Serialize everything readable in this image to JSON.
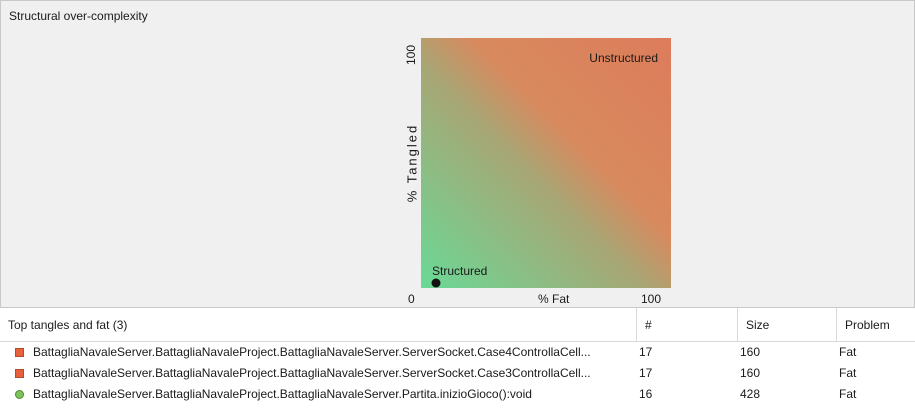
{
  "panel": {
    "title": "Structural over-complexity"
  },
  "chart_data": {
    "type": "scatter",
    "xlabel": "% Fat",
    "ylabel": "% Tangled",
    "xlim": [
      0,
      100
    ],
    "ylim": [
      0,
      100
    ],
    "x_tick_labels": [
      "0",
      "100"
    ],
    "y_tick_labels": [
      "100"
    ],
    "annotations": {
      "top_right": "Unstructured",
      "bottom_left": "Structured"
    },
    "points": [
      {
        "x": 6,
        "y": 2
      }
    ],
    "grid": false,
    "colors": {
      "structured": "#6ad996",
      "unstructured": "#dd7c5b",
      "marker": "#111111"
    }
  },
  "table": {
    "headers": {
      "name": "Top tangles and fat (3)",
      "count": "#",
      "size": "Size",
      "problem": "Problem"
    },
    "rows": [
      {
        "icon": "square-icon",
        "name": "BattagliaNavaleServer.BattagliaNavaleProject.BattagliaNavaleServer.ServerSocket.Case4ControllaCell...",
        "count": "17",
        "size": "160",
        "problem": "Fat"
      },
      {
        "icon": "square-icon",
        "name": "BattagliaNavaleServer.BattagliaNavaleProject.BattagliaNavaleServer.ServerSocket.Case3ControllaCell...",
        "count": "17",
        "size": "160",
        "problem": "Fat"
      },
      {
        "icon": "circle-icon",
        "name": "BattagliaNavaleServer.BattagliaNavaleProject.BattagliaNavaleServer.Partita.inizioGioco():void",
        "count": "16",
        "size": "428",
        "problem": "Fat"
      }
    ]
  }
}
